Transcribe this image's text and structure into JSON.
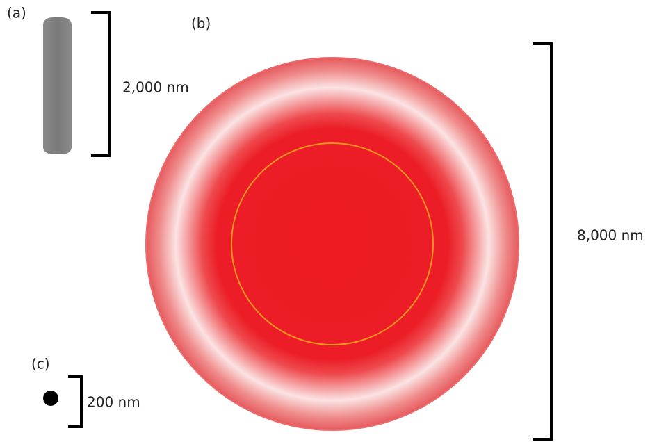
{
  "panels": [
    {
      "label": "(a)",
      "scale": "2,000 nm"
    },
    {
      "label": "(b)",
      "scale": "8,000 nm"
    },
    {
      "label": "(c)",
      "scale": "200 nm"
    }
  ]
}
